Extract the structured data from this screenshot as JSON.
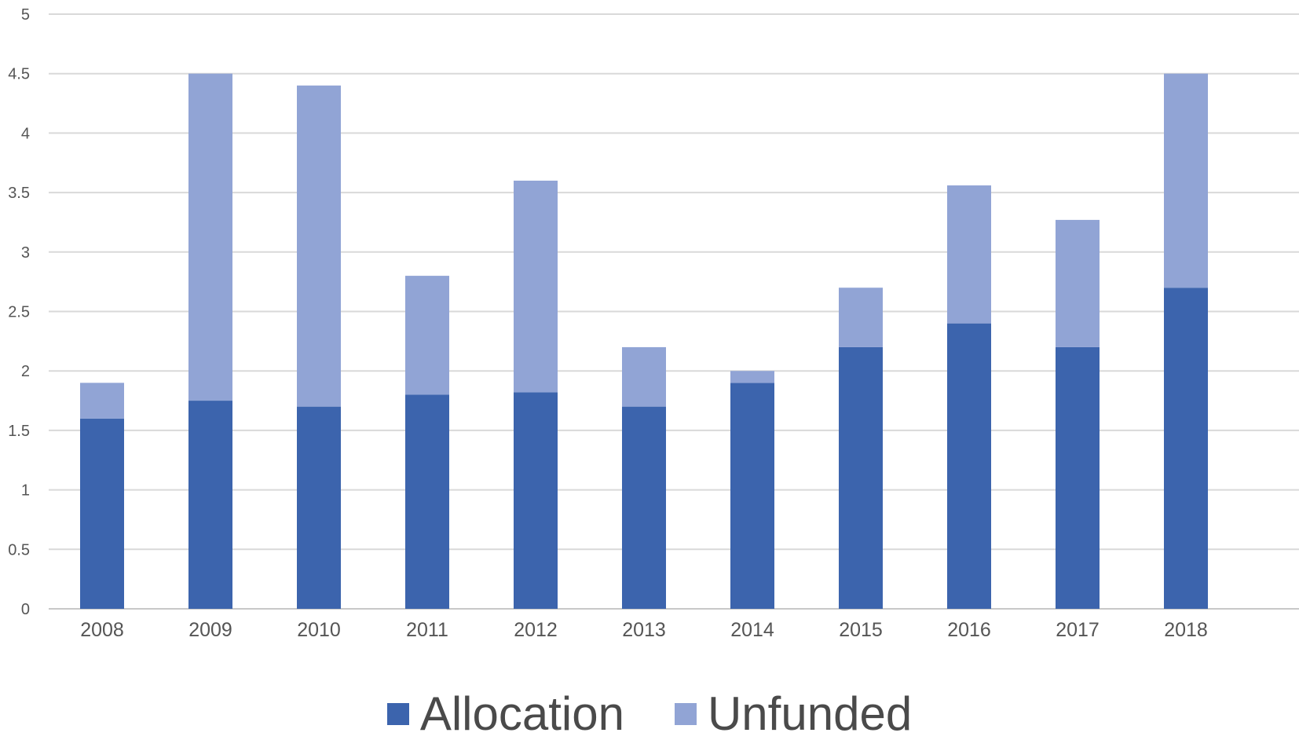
{
  "chart_data": {
    "type": "bar",
    "stacked": true,
    "categories": [
      "2008",
      "2009",
      "2010",
      "2011",
      "2012",
      "2013",
      "2014",
      "2015",
      "2016",
      "2017",
      "2018"
    ],
    "series": [
      {
        "name": "Allocation",
        "color": "#3c64ad",
        "values": [
          1.6,
          1.75,
          1.7,
          1.8,
          1.82,
          1.7,
          1.9,
          2.2,
          2.4,
          2.2,
          2.7
        ]
      },
      {
        "name": "Unfunded",
        "color": "#91a4d5",
        "values": [
          0.3,
          2.75,
          2.7,
          1.0,
          1.78,
          0.5,
          0.1,
          0.5,
          1.16,
          1.07,
          1.8
        ]
      }
    ],
    "ylim": [
      0,
      5
    ],
    "yticks": [
      "0",
      "0.5",
      "1",
      "1.5",
      "2",
      "2.5",
      "3",
      "3.5",
      "4",
      "4.5",
      "5"
    ],
    "grid": true,
    "legend_position": "bottom",
    "title": "",
    "xlabel": "",
    "ylabel": ""
  }
}
